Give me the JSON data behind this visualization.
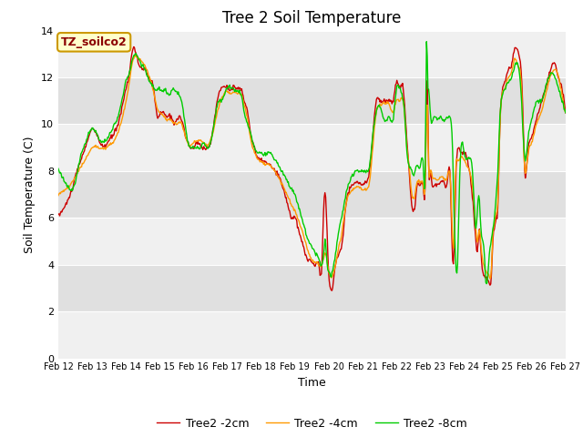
{
  "title": "Tree 2 Soil Temperature",
  "xlabel": "Time",
  "ylabel": "Soil Temperature (C)",
  "ylim": [
    0,
    14
  ],
  "annotation": "TZ_soilco2",
  "legend_labels": [
    "Tree2 -2cm",
    "Tree2 -4cm",
    "Tree2 -8cm"
  ],
  "colors": [
    "#cc0000",
    "#ff9900",
    "#00cc00"
  ],
  "x_tick_labels": [
    "Feb 12",
    "Feb 13",
    "Feb 14",
    "Feb 15",
    "Feb 16",
    "Feb 17",
    "Feb 18",
    "Feb 19",
    "Feb 20",
    "Feb 21",
    "Feb 22",
    "Feb 23",
    "Feb 24",
    "Feb 25",
    "Feb 26",
    "Feb 27"
  ],
  "background_color": "#ffffff",
  "plot_bg_light": "#f0f0f0",
  "plot_bg_dark": "#e0e0e0",
  "title_fontsize": 12,
  "axis_fontsize": 9,
  "tick_fontsize": 8,
  "linewidth": 1.0,
  "band_edges": [
    0,
    2,
    4,
    6,
    8,
    10,
    12,
    14
  ],
  "annotation_facecolor": "#ffffcc",
  "annotation_edgecolor": "#cc9900",
  "annotation_textcolor": "#8B0000"
}
